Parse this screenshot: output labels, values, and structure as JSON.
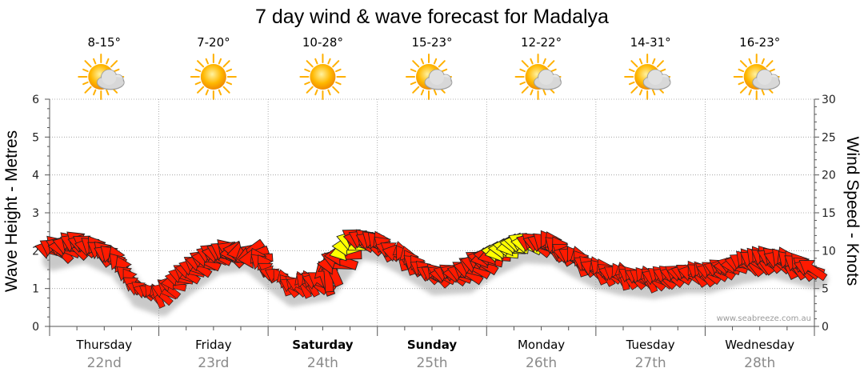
{
  "chart_data": {
    "type": "line",
    "title": "7 day wind & wave forecast for Madalya",
    "ylabel_left": "Wave Height - Metres",
    "ylabel_right": "Wind Speed - Knots",
    "ylim_left": [
      0,
      6
    ],
    "ylim_right": [
      0,
      30
    ],
    "yticks_left": [
      "0",
      "1",
      "2",
      "3",
      "4",
      "5",
      "6"
    ],
    "yticks_right": [
      "0",
      "5",
      "10",
      "15",
      "20",
      "25",
      "30"
    ],
    "credit": "www.seabreeze.com.au",
    "days": [
      {
        "name": "Thursday",
        "date": "22nd",
        "bold": false,
        "temp": "8-15°",
        "weather": "partly-cloudy"
      },
      {
        "name": "Friday",
        "date": "23rd",
        "bold": false,
        "temp": "7-20°",
        "weather": "sunny"
      },
      {
        "name": "Saturday",
        "date": "24th",
        "bold": true,
        "temp": "10-28°",
        "weather": "sunny"
      },
      {
        "name": "Sunday",
        "date": "25th",
        "bold": true,
        "temp": "15-23°",
        "weather": "partly-cloudy"
      },
      {
        "name": "Monday",
        "date": "26th",
        "bold": false,
        "temp": "12-22°",
        "weather": "partly-cloudy"
      },
      {
        "name": "Tuesday",
        "date": "27th",
        "bold": false,
        "temp": "14-31°",
        "weather": "partly-cloudy"
      },
      {
        "name": "Wednesday",
        "date": "28th",
        "bold": false,
        "temp": "16-23°",
        "weather": "partly-cloudy"
      }
    ],
    "wave_height_m": {
      "x_days": [
        0,
        0.3,
        0.6,
        0.8,
        1.0,
        1.2,
        1.5,
        1.8,
        2.0,
        2.2,
        2.5,
        2.8,
        3.0,
        3.2,
        3.5,
        3.8,
        4.0,
        4.3,
        4.6,
        4.8,
        5.0,
        5.2,
        5.5,
        5.8,
        6.0,
        6.3,
        6.6,
        7.0
      ],
      "values": [
        2.0,
        2.2,
        1.8,
        1.0,
        0.8,
        1.3,
        1.9,
        2.0,
        1.5,
        1.05,
        1.2,
        2.3,
        2.2,
        1.9,
        1.35,
        1.4,
        1.8,
        2.2,
        2.15,
        1.8,
        1.5,
        1.35,
        1.25,
        1.4,
        1.4,
        1.65,
        1.8,
        1.5
      ]
    },
    "wind": {
      "x_days": [
        0.05,
        0.15,
        0.25,
        0.35,
        0.45,
        0.55,
        0.65,
        0.75,
        0.85,
        0.95,
        1.05,
        1.15,
        1.25,
        1.35,
        1.45,
        1.55,
        1.65,
        1.75,
        1.85,
        1.95,
        2.05,
        2.15,
        2.25,
        2.35,
        2.45,
        2.55,
        2.65,
        2.75,
        2.85,
        2.95,
        3.05,
        3.15,
        3.25,
        3.35,
        3.45,
        3.55,
        3.65,
        3.75,
        3.85,
        3.95,
        4.05,
        4.15,
        4.25,
        4.35,
        4.45,
        4.55,
        4.65,
        4.75,
        4.85,
        4.95,
        5.05,
        5.15,
        5.25,
        5.35,
        5.45,
        5.55,
        5.65,
        5.75,
        5.85,
        5.95,
        6.05,
        6.15,
        6.25,
        6.35,
        6.45,
        6.55,
        6.65,
        6.75,
        6.85,
        6.95
      ],
      "knots": [
        10,
        11,
        11,
        10,
        11,
        10,
        9,
        7,
        5,
        4,
        5,
        6,
        7,
        8,
        9,
        10,
        11,
        11,
        10,
        8,
        6,
        5,
        5,
        6,
        8,
        11,
        12,
        11,
        11,
        10,
        9,
        8,
        7,
        7,
        7,
        7,
        8,
        9,
        10,
        11,
        12,
        12,
        11,
        11,
        10,
        10,
        9,
        8,
        8,
        7,
        7,
        6,
        6,
        6,
        6,
        7,
        7,
        7,
        7,
        7,
        7,
        7,
        8,
        8,
        9,
        9,
        10,
        10,
        9,
        8
      ],
      "direction_deg": [
        300,
        280,
        310,
        290,
        320,
        300,
        330,
        310,
        300,
        320,
        300,
        280,
        290,
        300,
        280,
        290,
        300,
        270,
        250,
        320,
        300,
        330,
        310,
        320,
        300,
        340,
        280,
        270,
        290,
        310,
        320,
        300,
        330,
        320,
        300,
        310,
        290,
        280,
        300,
        290,
        270,
        260,
        270,
        280,
        300,
        310,
        320,
        300,
        330,
        310,
        320,
        300,
        330,
        310,
        320,
        300,
        310,
        290,
        300,
        310,
        300,
        290,
        280,
        300,
        310,
        320,
        300,
        330,
        310,
        300
      ],
      "color": [
        "red",
        "red",
        "red",
        "red",
        "red",
        "red",
        "red",
        "red",
        "red",
        "red",
        "red",
        "red",
        "red",
        "red",
        "red",
        "red",
        "red",
        "red",
        "red",
        "red",
        "red",
        "red",
        "red",
        "red",
        "red",
        "red",
        "red",
        "yellow",
        "red",
        "red",
        "red",
        "red",
        "red",
        "red",
        "red",
        "red",
        "red",
        "red",
        "red",
        "red",
        "red",
        "yellow",
        "yellow",
        "yellow",
        "red",
        "red",
        "red",
        "red",
        "red",
        "red",
        "red",
        "red",
        "red",
        "red",
        "red",
        "red",
        "red",
        "red",
        "red",
        "red",
        "red",
        "red",
        "red",
        "red",
        "red",
        "red",
        "red",
        "red",
        "red",
        "red"
      ]
    },
    "colors": {
      "arrow_red": "#ff1a00",
      "arrow_yellow": "#ffff00",
      "grid": "#9a9a9a"
    }
  }
}
